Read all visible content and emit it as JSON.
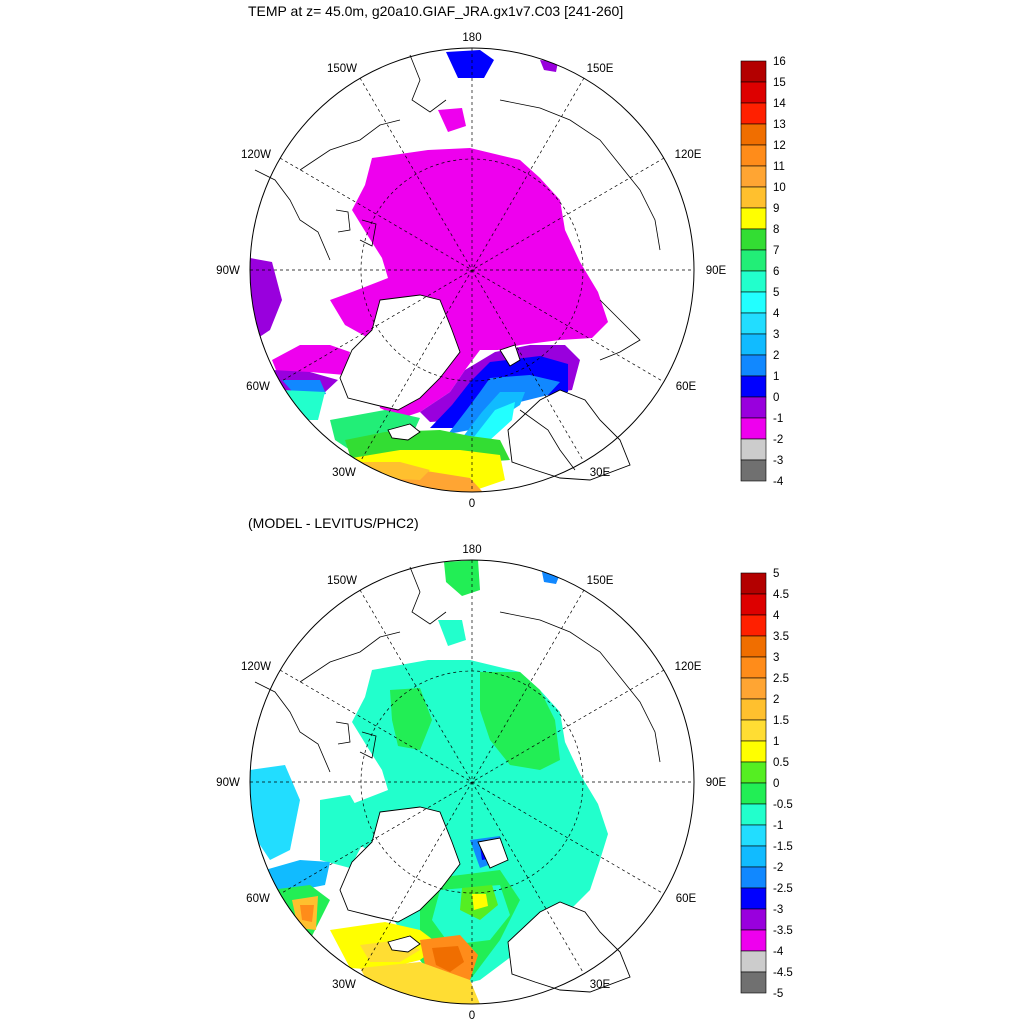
{
  "panels": [
    {
      "title": "TEMP at z=  45.0m, g20a10.GIAF_JRA.gx1v7.C03 [241-260]",
      "lon_labels": [
        "180",
        "150E",
        "120E",
        "90E",
        "60E",
        "30E",
        "0",
        "30W",
        "60W",
        "90W",
        "120W",
        "150W"
      ],
      "colorbar": {
        "labels": [
          "16",
          "15",
          "14",
          "13",
          "12",
          "11",
          "10",
          "9",
          "8",
          "7",
          "6",
          "5",
          "4",
          "3",
          "2",
          "1",
          "0",
          "-1",
          "-2",
          "-3",
          "-4"
        ],
        "colors": [
          "#b30000",
          "#dd0000",
          "#ff2000",
          "#f06e00",
          "#ff8c1a",
          "#ffa533",
          "#ffc02e",
          "#ffff00",
          "#33dd33",
          "#22ee77",
          "#22ffcc",
          "#22ffff",
          "#22ddff",
          "#11bbff",
          "#1188ff",
          "#0000ff",
          "#9900dd",
          "#ee00ee",
          "#cccccc",
          "#707070"
        ]
      }
    },
    {
      "title": "(MODEL - LEVITUS/PHC2)",
      "lon_labels": [
        "180",
        "150E",
        "120E",
        "90E",
        "60E",
        "30E",
        "0",
        "30W",
        "60W",
        "90W",
        "120W",
        "150W"
      ],
      "colorbar": {
        "labels": [
          "5",
          "4.5",
          "4",
          "3.5",
          "3",
          "2.5",
          "2",
          "1.5",
          "1",
          "0.5",
          "0",
          "-0.5",
          "-1",
          "-1.5",
          "-2",
          "-2.5",
          "-3",
          "-3.5",
          "-4",
          "-4.5",
          "-5"
        ],
        "colors": [
          "#b30000",
          "#dd0000",
          "#ff2000",
          "#f06e00",
          "#ff8c1a",
          "#ffa533",
          "#ffc02e",
          "#ffdd33",
          "#ffff00",
          "#55ee22",
          "#22ee55",
          "#22ffcc",
          "#22ddff",
          "#11bbff",
          "#1188ff",
          "#0000ff",
          "#9900dd",
          "#ee00ee",
          "#cccccc",
          "#707070"
        ]
      }
    }
  ]
}
